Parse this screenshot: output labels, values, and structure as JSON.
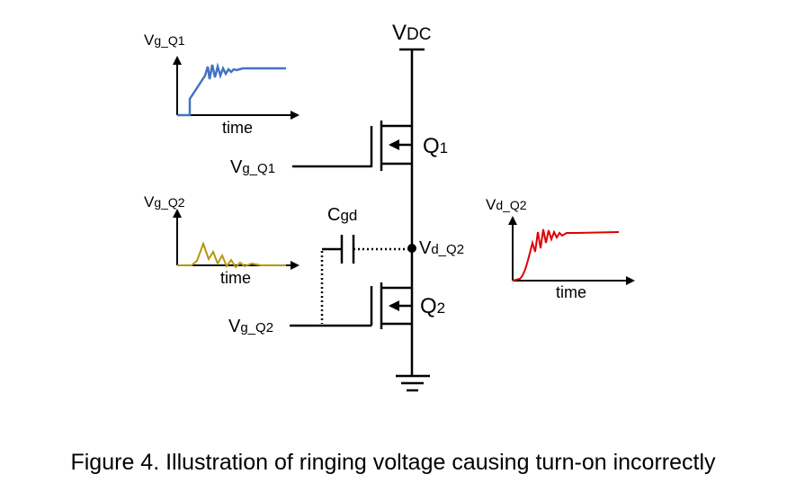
{
  "labels": {
    "vdc": {
      "main": "V",
      "sub": "DC"
    },
    "q1": {
      "main": "Q",
      "sub": "1"
    },
    "q2": {
      "main": "Q",
      "sub": "2"
    },
    "cgd": {
      "main": "C",
      "sub": "gd"
    },
    "node": {
      "main": "V",
      "sub": "d_Q2"
    },
    "gate1": {
      "main": "V",
      "sub": "g_Q1"
    },
    "gate2": {
      "main": "V",
      "sub": "g_Q2"
    }
  },
  "graphs": [
    {
      "label": {
        "main": "V",
        "sub": "g_Q1"
      },
      "x_label": "time"
    },
    {
      "label": {
        "main": "V",
        "sub": "g_Q2"
      },
      "x_label": "time"
    },
    {
      "label": {
        "main": "V",
        "sub": "d_Q2"
      },
      "x_label": "time"
    }
  ],
  "caption": "Figure 4. Illustration of ringing voltage causing turn-on incorrectly"
}
